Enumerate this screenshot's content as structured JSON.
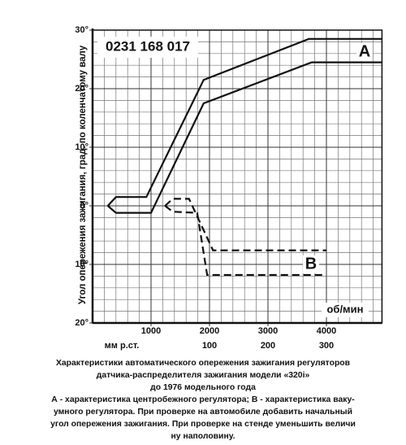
{
  "chart_data": {
    "type": "line",
    "code": "0231 168 017",
    "ylabel": "Угол опережения зажигания, град. по коленчатому валу",
    "xunit": "об/мин",
    "x2unit": "мм р.ст.",
    "xlim": [
      0,
      4950
    ],
    "xticks": [
      1000,
      2000,
      3000,
      4000
    ],
    "x2lim": [
      -100,
      395
    ],
    "x2ticks": [
      100,
      200,
      300
    ],
    "ylim": [
      -20,
      30
    ],
    "yticks": [
      {
        "value": 30,
        "label": "30°"
      },
      {
        "value": 20,
        "label": "20°"
      },
      {
        "value": 10,
        "label": "10°"
      },
      {
        "value": 0,
        "label": "0°"
      },
      {
        "value": -10,
        "label": "10°"
      },
      {
        "value": -20,
        "label": "20°"
      }
    ],
    "grid": true,
    "xminor": 200,
    "yminor": 2,
    "series": [
      {
        "name": "A",
        "color": "#111111",
        "dash": false,
        "axis": "x",
        "lines": [
          {
            "x": [
              260,
              400,
              920,
              1900,
              3700,
              4950
            ],
            "y": [
              0,
              1.5,
              1.5,
              21.5,
              28.5,
              28.5
            ]
          },
          {
            "x": [
              260,
              400,
              1000,
              1900,
              3750,
              4950
            ],
            "y": [
              0,
              -1.2,
              -1.2,
              17.5,
              24.5,
              24.5
            ]
          }
        ]
      },
      {
        "name": "B",
        "color": "#111111",
        "dash": true,
        "axis": "x2",
        "lines": [
          {
            "x": [
              24,
              37,
              65,
              106,
              300
            ],
            "y": [
              0,
              1.2,
              1.2,
              -7.6,
              -7.6
            ]
          },
          {
            "x": [
              24,
              37,
              79,
              96,
              300
            ],
            "y": [
              0,
              -1,
              -1.2,
              -11.8,
              -11.8
            ]
          }
        ]
      }
    ],
    "caption": [
      "Характеристики автоматического опережения зажигания регуляторов",
      "датчика-распределителя зажигания модели «320i»",
      "до 1976 модельного года",
      "А - характеристика центробежного регулятора; В - характеристика ваку-",
      "умного регулятора. При проверке на автомобиле добавить начальный",
      "угол опережения зажигания. При проверке на стенде уменьшить величи",
      "ну наполовину."
    ]
  }
}
